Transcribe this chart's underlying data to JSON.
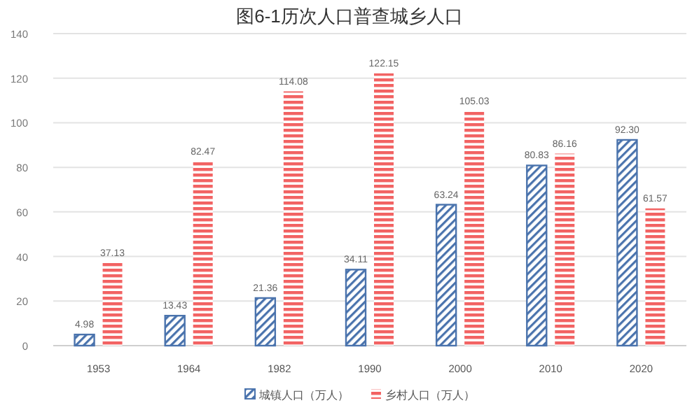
{
  "chart_data": {
    "type": "bar",
    "title": "图6-1历次人口普查城乡人口",
    "categories": [
      "1953",
      "1964",
      "1982",
      "1990",
      "2000",
      "2010",
      "2020"
    ],
    "series": [
      {
        "name": "城镇人口（万人）",
        "color": "#4a73ad",
        "values": [
          4.98,
          13.43,
          21.36,
          34.11,
          63.24,
          80.83,
          92.3
        ],
        "value_labels": [
          "4.98",
          "13.43",
          "21.36",
          "34.11",
          "63.24",
          "80.83",
          "92.30"
        ]
      },
      {
        "name": "乡村人口（万人）",
        "color": "#f26363",
        "values": [
          37.13,
          82.47,
          114.08,
          122.15,
          105.03,
          86.16,
          61.57
        ],
        "value_labels": [
          "37.13",
          "82.47",
          "114.08",
          "122.15",
          "105.03",
          "86.16",
          "61.57"
        ]
      }
    ],
    "ylim": [
      0,
      140
    ],
    "yticks": [
      0,
      20,
      40,
      60,
      80,
      100,
      120,
      140
    ],
    "grid": "y",
    "legend": "bottom"
  }
}
